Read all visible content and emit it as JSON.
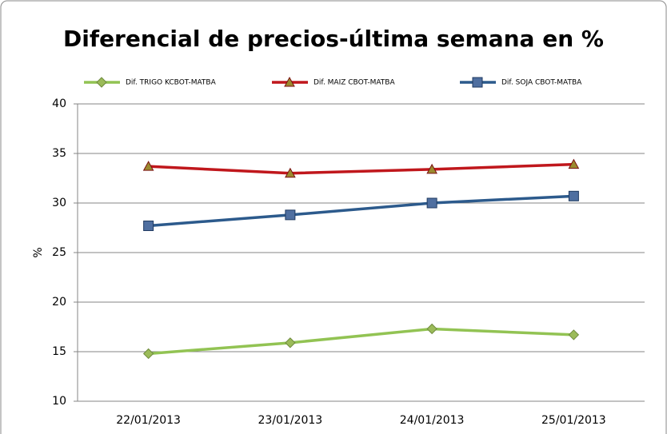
{
  "chart_data": {
    "type": "line",
    "title": "Diferencial de precios-última semana en %",
    "y_label": "%",
    "categories": [
      "22/01/2013",
      "23/01/2013",
      "24/01/2013",
      "25/01/2013"
    ],
    "series": [
      {
        "name": "Dif. TRIGO KCBOT-MATBA",
        "color": "#92c353",
        "marker": "diamond",
        "values": [
          14.8,
          15.9,
          17.3,
          16.7
        ]
      },
      {
        "name": "Dif. MAIZ CBOT-MATBA",
        "color": "#c0171c",
        "marker": "triangle",
        "values": [
          33.7,
          33.0,
          33.4,
          33.9
        ]
      },
      {
        "name": "Dif. SOJA CBOT-MATBA",
        "color": "#2c5a8c",
        "marker": "square",
        "values": [
          27.7,
          28.8,
          30.0,
          30.7
        ]
      }
    ],
    "ylim": [
      10,
      40
    ],
    "yticks": [
      10,
      15,
      20,
      25,
      30,
      35,
      40
    ],
    "grid": true,
    "legend": "top"
  }
}
